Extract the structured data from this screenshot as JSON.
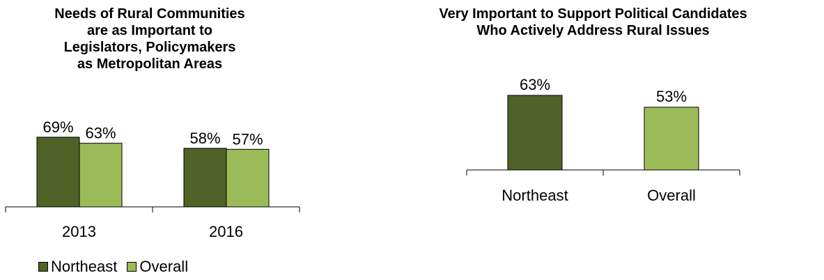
{
  "chart_data": [
    {
      "type": "bar",
      "title": "Needs of Rural Communities\nare as Important to\nLegislators, Policymakers\nas Metropolitan Areas",
      "categories": [
        "2013",
        "2016"
      ],
      "series": [
        {
          "name": "Northeast",
          "values": [
            69,
            58
          ],
          "labels": [
            "69%",
            "58%"
          ],
          "color": "#4f6228"
        },
        {
          "name": "Overall",
          "values": [
            63,
            57
          ],
          "labels": [
            "63%",
            "57%"
          ],
          "color": "#9bbb59"
        }
      ],
      "legend": "bottom",
      "grid": false
    },
    {
      "type": "bar",
      "title": "Very Important to Support Political Candidates\nWho Actively Address Rural Issues",
      "categories": [
        "Northeast",
        "Overall"
      ],
      "values": [
        63,
        53
      ],
      "labels": [
        "63%",
        "53%"
      ],
      "colors": [
        "#4f6228",
        "#9bbb59"
      ],
      "grid": false
    }
  ]
}
